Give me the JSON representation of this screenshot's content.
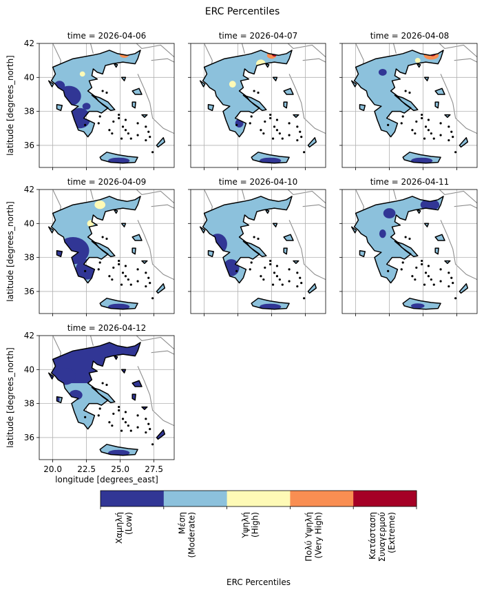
{
  "figure": {
    "title": "ERC Percentiles"
  },
  "chart_data": {
    "type": "heatmap",
    "title": "ERC Percentiles",
    "xlabel": "longitude [degrees_east]",
    "ylabel": "latitude [degrees_north]",
    "xlim": [
      19.0,
      29.0
    ],
    "ylim": [
      34.7,
      42.0
    ],
    "xticks": [
      "20.0",
      "22.5",
      "25.0",
      "27.5"
    ],
    "xtick_values": [
      20.0,
      22.5,
      25.0,
      27.5
    ],
    "yticks": [
      "36",
      "38",
      "40",
      "42"
    ],
    "ytick_values": [
      36,
      38,
      40,
      42
    ],
    "grid": true,
    "panels": [
      {
        "title": "time = 2026-04-06",
        "dominant_class": 1
      },
      {
        "title": "time = 2026-04-07",
        "dominant_class": 1
      },
      {
        "title": "time = 2026-04-08",
        "dominant_class": 1
      },
      {
        "title": "time = 2026-04-09",
        "dominant_class": 1
      },
      {
        "title": "time = 2026-04-10",
        "dominant_class": 1
      },
      {
        "title": "time = 2026-04-11",
        "dominant_class": 1
      },
      {
        "title": "time = 2026-04-12",
        "dominant_class": 0
      }
    ],
    "colorbar": {
      "label": "ERC Percentiles",
      "orientation": "horizontal",
      "categories": [
        {
          "line1": "Χαμηλή",
          "line2": "(Low)",
          "color": "#313695"
        },
        {
          "line1": "Μέση",
          "line2": "(Moderate)",
          "color": "#8cc1dc"
        },
        {
          "line1": "Υψηλή",
          "line2": "(High)",
          "color": "#fefab6"
        },
        {
          "line1": "Πολύ Υψηλή",
          "line2": "(Very High)",
          "color": "#f98e52"
        },
        {
          "line1": "Κατάσταση",
          "line2": "Συναγερμού",
          "line3": "(Extreme)",
          "color": "#a50026"
        }
      ]
    }
  }
}
